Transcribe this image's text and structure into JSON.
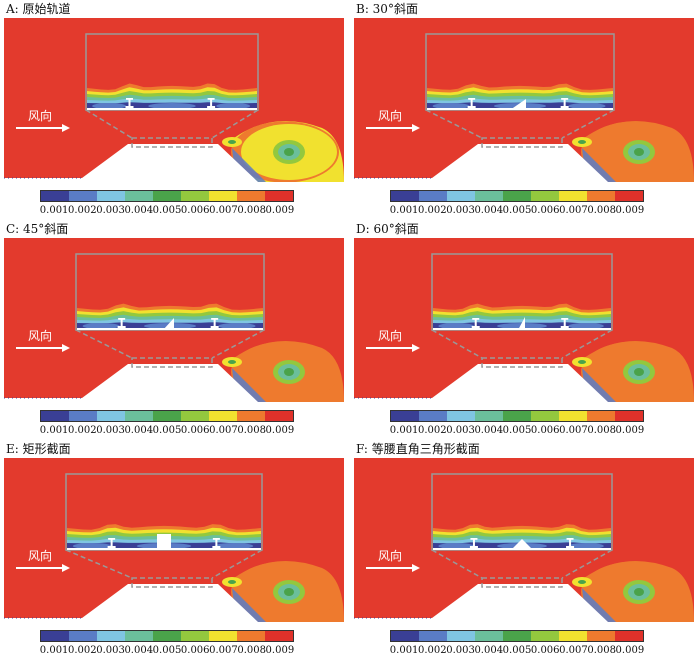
{
  "panels": [
    {
      "id": "A",
      "label": "A: 原始轨道",
      "structure": "none"
    },
    {
      "id": "B",
      "label": "B: 30°斜面",
      "structure": "tri30"
    },
    {
      "id": "C",
      "label": "C: 45°斜面",
      "structure": "tri45"
    },
    {
      "id": "D",
      "label": "D: 60°斜面",
      "structure": "tri60"
    },
    {
      "id": "E",
      "label": "E: 矩形截面",
      "structure": "rect"
    },
    {
      "id": "F",
      "label": "F: 等腰直角三角形截面",
      "structure": "isotri"
    }
  ],
  "wind_label": "风向",
  "colorbar": {
    "ticks": [
      "0.001",
      "0.002",
      "0.003",
      "0.004",
      "0.005",
      "0.006",
      "0.007",
      "0.008",
      "0.009"
    ],
    "colors": [
      "#3a3f95",
      "#5a7cc6",
      "#7fc5e2",
      "#6bbf9b",
      "#4aa34a",
      "#93c83e",
      "#f1e12f",
      "#ee7a2e",
      "#e0312a"
    ]
  },
  "palette": {
    "background": "#e33a2d",
    "ground": "#ffffff",
    "inset_border": "#999999"
  }
}
